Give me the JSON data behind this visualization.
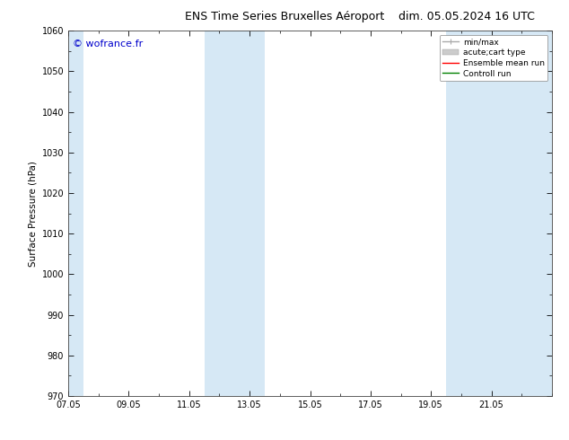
{
  "title_left": "ENS Time Series Bruxelles Aéroport",
  "title_right": "dim. 05.05.2024 16 UTC",
  "ylabel": "Surface Pressure (hPa)",
  "watermark": "© wofrance.fr",
  "ylim": [
    970,
    1060
  ],
  "yticks": [
    970,
    980,
    990,
    1000,
    1010,
    1020,
    1030,
    1040,
    1050,
    1060
  ],
  "xtick_labels": [
    "07.05",
    "09.05",
    "11.05",
    "13.05",
    "15.05",
    "17.05",
    "19.05",
    "21.05"
  ],
  "xmin": 0.0,
  "xmax": 16.0,
  "shaded_regions": [
    {
      "xmin": 0.0,
      "xmax": 0.5
    },
    {
      "xmin": 4.5,
      "xmax": 6.5
    },
    {
      "xmin": 12.5,
      "xmax": 16.0
    }
  ],
  "shade_color": "#d6e8f5",
  "legend_items": [
    {
      "label": "min/max",
      "color": "#aaaaaa",
      "lw": 1.0
    },
    {
      "label": "acute;cart type",
      "color": "#cccccc",
      "lw": 6
    },
    {
      "label": "Ensemble mean run",
      "color": "#ff0000",
      "lw": 1.0
    },
    {
      "label": "Controll run",
      "color": "#008000",
      "lw": 1.0
    }
  ],
  "bg_color": "#ffffff",
  "spine_color": "#444444",
  "title_fontsize": 9,
  "label_fontsize": 7.5,
  "tick_fontsize": 7,
  "watermark_color": "#0000cc",
  "watermark_fontsize": 8
}
